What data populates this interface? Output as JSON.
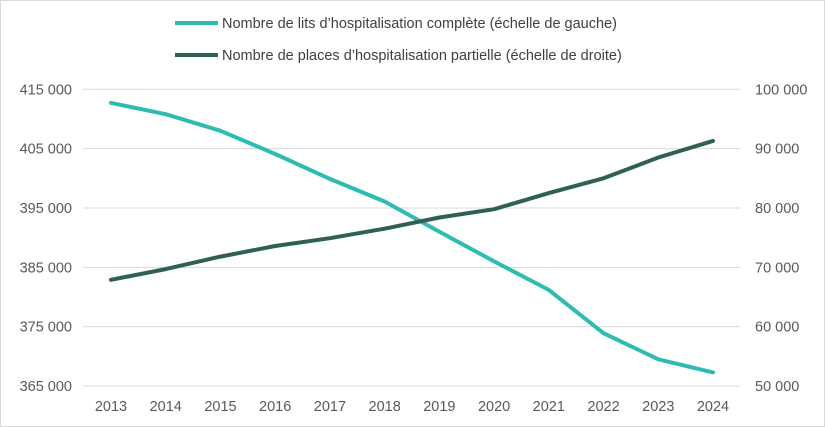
{
  "chart_data": {
    "type": "line",
    "title": "",
    "x": [
      "2013",
      "2014",
      "2015",
      "2016",
      "2017",
      "2018",
      "2019",
      "2020",
      "2021",
      "2022",
      "2023",
      "2024"
    ],
    "series": [
      {
        "name": "Nombre de lits d’hospitalisation complète (échelle de gauche)",
        "axis": "left",
        "color": "#2cbcb2",
        "values": [
          412700,
          410800,
          408000,
          404100,
          399900,
          396100,
          391000,
          386000,
          381200,
          373900,
          369500,
          367300
        ]
      },
      {
        "name": "Nombre de places d’hospitalisation partielle (échelle de droite)",
        "axis": "right",
        "color": "#2f5f57",
        "values": [
          67900,
          69700,
          71800,
          73600,
          74900,
          76500,
          78400,
          79800,
          82500,
          85000,
          88500,
          91300
        ]
      }
    ],
    "left_axis": {
      "ylim": [
        365000,
        415000
      ],
      "ticks": [
        "365 000",
        "375 000",
        "385 000",
        "395 000",
        "405 000",
        "415 000"
      ]
    },
    "right_axis": {
      "ylim": [
        50000,
        100000
      ],
      "ticks": [
        "50 000",
        "60 000",
        "70 000",
        "80 000",
        "90 000",
        "100 000"
      ]
    },
    "grid": true,
    "legend_position": "top"
  }
}
